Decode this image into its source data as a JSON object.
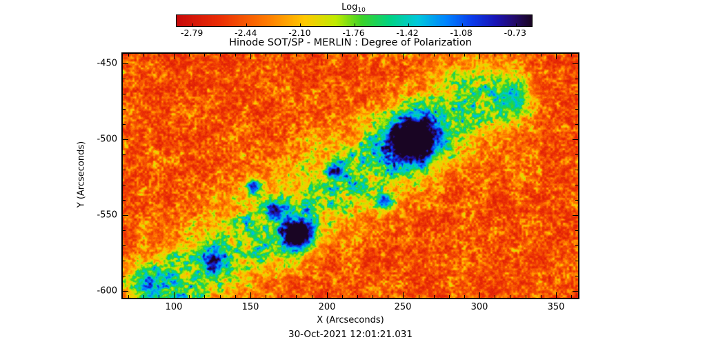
{
  "chart_data": {
    "type": "heatmap",
    "title": "Hinode SOT/SP - MERLIN : Degree of Polarization",
    "date_caption": "30-Oct-2021 12:01:21.031",
    "xlabel": "X (Arcseconds)",
    "ylabel": "Y (Arcseconds)",
    "xlim": [
      66.5,
      364.5
    ],
    "ylim": [
      -604.5,
      -443.5
    ],
    "x_ticks": [
      100,
      150,
      200,
      250,
      300,
      350
    ],
    "y_ticks": [
      -450,
      -500,
      -550,
      -600
    ],
    "minor_tick_step": 10,
    "grid": false,
    "colorbar": {
      "label_text": "Log",
      "label_sub": "10",
      "tick_labels": [
        "-2.79",
        "-2.44",
        "-2.10",
        "-1.76",
        "-1.42",
        "-1.08",
        "-0.73"
      ],
      "value_range": [
        -2.79,
        -0.73
      ],
      "tick_inset_fraction": 0.045
    },
    "colormap_stops": [
      [
        0.0,
        200,
        10,
        10
      ],
      [
        0.12,
        235,
        45,
        5
      ],
      [
        0.25,
        255,
        120,
        0
      ],
      [
        0.36,
        255,
        200,
        0
      ],
      [
        0.45,
        190,
        235,
        0
      ],
      [
        0.52,
        60,
        210,
        40
      ],
      [
        0.6,
        0,
        210,
        130
      ],
      [
        0.68,
        0,
        200,
        220
      ],
      [
        0.76,
        0,
        130,
        255
      ],
      [
        0.83,
        10,
        60,
        235
      ],
      [
        0.9,
        25,
        20,
        180
      ],
      [
        0.95,
        35,
        10,
        110
      ],
      [
        1.0,
        25,
        5,
        35
      ]
    ],
    "background_field": {
      "base": 0.07,
      "noise_amp": 0.52,
      "noise_pow": 2.2,
      "jitter": 0.06
    },
    "active_region_band": {
      "from_xy": [
        95,
        -600
      ],
      "to_xy": [
        300,
        -472
      ],
      "sigma": 18,
      "amp": 0.5
    },
    "features": [
      {
        "label": "sunspot-pore-main",
        "x": 257,
        "y": -500,
        "amp": 1.0,
        "sigma": 10.5
      },
      {
        "label": "sunspot-pore-2",
        "x": 181,
        "y": -563,
        "amp": 0.95,
        "sigma": 7
      },
      {
        "label": "knot",
        "x": 152,
        "y": -531,
        "amp": 0.6,
        "sigma": 3.5
      },
      {
        "label": "knot",
        "x": 238,
        "y": -541,
        "amp": 0.55,
        "sigma": 4
      },
      {
        "label": "knot",
        "x": 166,
        "y": -547,
        "amp": 0.5,
        "sigma": 4
      },
      {
        "label": "knot",
        "x": 205,
        "y": -521,
        "amp": 0.45,
        "sigma": 3.5
      },
      {
        "label": "dark-patch",
        "x": 126,
        "y": -580,
        "amp": 0.5,
        "sigma": 5.5
      },
      {
        "label": "plage-patch",
        "x": 322,
        "y": -472,
        "amp": 0.35,
        "sigma": 8
      },
      {
        "label": "plage-patch",
        "x": 82,
        "y": -594,
        "amp": 0.3,
        "sigma": 7
      }
    ]
  }
}
